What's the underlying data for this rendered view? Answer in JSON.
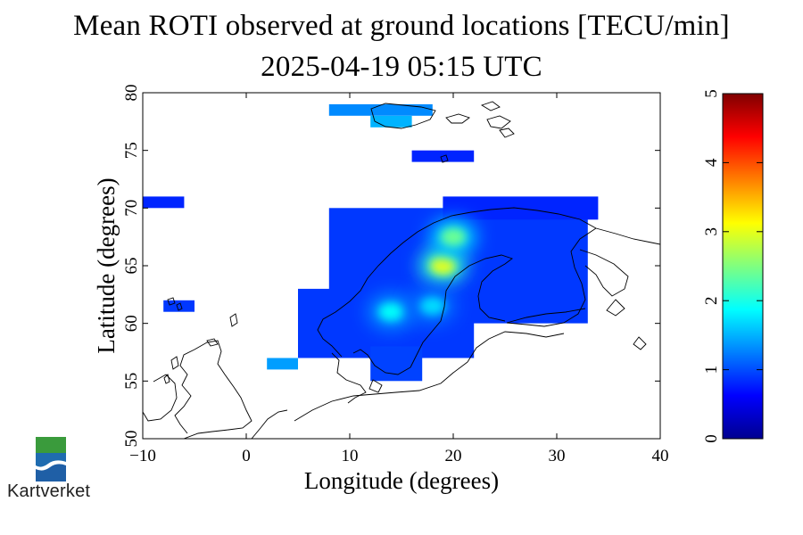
{
  "title": "Mean ROTI observed at ground locations [TECU/min]",
  "subtitle": "2025-04-19 05:15 UTC",
  "xlabel": "Longitude (degrees)",
  "ylabel": "Latitude (degrees)",
  "x_ticks": [
    "−10",
    "0",
    "10",
    "20",
    "30",
    "40"
  ],
  "y_ticks": [
    "50",
    "55",
    "60",
    "65",
    "70",
    "75",
    "80"
  ],
  "colorbar_ticks": [
    "0",
    "1",
    "2",
    "3",
    "4",
    "5"
  ],
  "logo_text": "Kartverket",
  "chart_data": {
    "type": "heatmap",
    "title": "Mean ROTI observed at ground locations [TECU/min]",
    "subtitle": "2025-04-19 05:15 UTC",
    "xlabel": "Longitude (degrees)",
    "ylabel": "Latitude (degrees)",
    "xlim": [
      -10,
      40
    ],
    "ylim": [
      50,
      80
    ],
    "colorbar": {
      "min": 0,
      "max": 5,
      "colormap": "jet",
      "ticks": [
        0,
        1,
        2,
        3,
        4,
        5
      ]
    },
    "regions": [
      {
        "lon": [
          8,
          18
        ],
        "lat": [
          78,
          79
        ],
        "value": 1.3
      },
      {
        "lon": [
          12,
          16
        ],
        "lat": [
          77,
          78
        ],
        "value": 1.5
      },
      {
        "lon": [
          16,
          22
        ],
        "lat": [
          74,
          75
        ],
        "value": 0.8
      },
      {
        "lon": [
          -10,
          -6
        ],
        "lat": [
          70,
          71
        ],
        "value": 0.8
      },
      {
        "lon": [
          -8,
          -5
        ],
        "lat": [
          61,
          62
        ],
        "value": 0.9
      },
      {
        "lon": [
          2,
          5
        ],
        "lat": [
          56,
          57
        ],
        "value": 1.4
      },
      {
        "lon": [
          5,
          22
        ],
        "lat": [
          57,
          63
        ],
        "value": 0.9
      },
      {
        "lon": [
          12,
          17
        ],
        "lat": [
          55,
          58
        ],
        "value": 0.95
      },
      {
        "lon": [
          8,
          33
        ],
        "lat": [
          60,
          70
        ],
        "value": 0.9
      },
      {
        "lon": [
          19,
          34
        ],
        "lat": [
          69,
          71
        ],
        "value": 0.8
      }
    ],
    "hotspots": [
      {
        "lon": 19.0,
        "lat": 65.0,
        "value": 3.0
      },
      {
        "lon": 20.0,
        "lat": 67.5,
        "value": 2.4
      },
      {
        "lon": 14.0,
        "lat": 61.0,
        "value": 1.9
      },
      {
        "lon": 18.0,
        "lat": 61.5,
        "value": 1.7
      }
    ]
  }
}
